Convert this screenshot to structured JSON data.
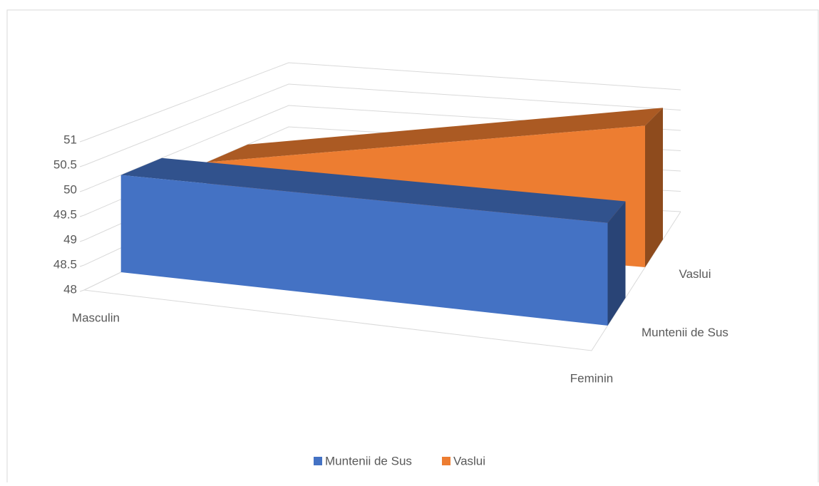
{
  "chart_data": {
    "type": "line3d",
    "categories": [
      "Masculin",
      "Feminin"
    ],
    "series": [
      {
        "name": "Muntenii de Sus",
        "color": "#4472c4",
        "values": [
          50,
          49.9
        ]
      },
      {
        "name": "Vaslui",
        "color": "#ed7d31",
        "values": [
          49.5,
          51
        ]
      }
    ],
    "ylim": [
      48,
      51
    ],
    "yticks": [
      48,
      48.5,
      49,
      49.5,
      50,
      50.5,
      51
    ],
    "grid": true,
    "legend": "bottom"
  }
}
